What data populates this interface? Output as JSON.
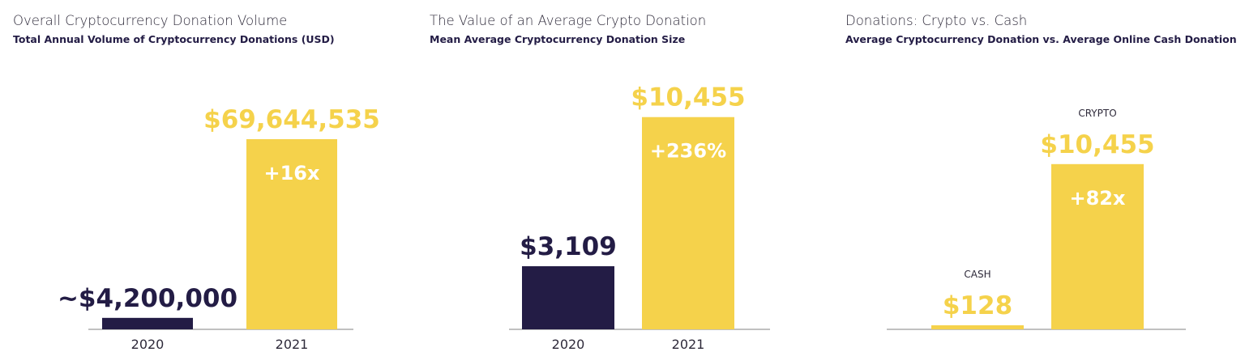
{
  "colors": {
    "dark": "#231c45",
    "yellow": "#f5d24b",
    "axis": "#9a9a9a"
  },
  "chart_data": [
    {
      "type": "bar",
      "title": "Overall Cryptocurrency Donation Volume",
      "subtitle": "Total Annual Volume of Cryptocurrency Donations (USD)",
      "categories": [
        "2020",
        "2021"
      ],
      "values": [
        4200000,
        69644535
      ],
      "value_labels": [
        "~$4,200,000",
        "$69,644,535"
      ],
      "inner_labels": [
        "",
        "+16x"
      ],
      "top_labels": [
        "",
        ""
      ],
      "bar_colors": [
        "#231c45",
        "#f5d24b"
      ],
      "ylim": [
        0,
        80000000
      ]
    },
    {
      "type": "bar",
      "title": "The Value of an Average Crypto Donation",
      "subtitle": "Mean Average Cryptocurrency Donation Size",
      "categories": [
        "2020",
        "2021"
      ],
      "values": [
        3109,
        10455
      ],
      "value_labels": [
        "$3,109",
        "$10,455"
      ],
      "inner_labels": [
        "",
        "+236%"
      ],
      "top_labels": [
        "",
        ""
      ],
      "bar_colors": [
        "#231c45",
        "#f5d24b"
      ],
      "ylim": [
        0,
        11400
      ]
    },
    {
      "type": "bar",
      "title": "Donations: Crypto vs. Cash",
      "subtitle": "Average Cryptocurrency Donation vs. Average Online Cash Donation",
      "categories": [
        "",
        ""
      ],
      "values": [
        128,
        10455
      ],
      "value_labels": [
        "$128",
        "$10,455"
      ],
      "inner_labels": [
        "",
        "+82x"
      ],
      "top_labels": [
        "CASH",
        "CRYPTO"
      ],
      "bar_colors": [
        "#f5d24b",
        "#f5d24b"
      ],
      "ylim": [
        0,
        12800
      ]
    }
  ]
}
